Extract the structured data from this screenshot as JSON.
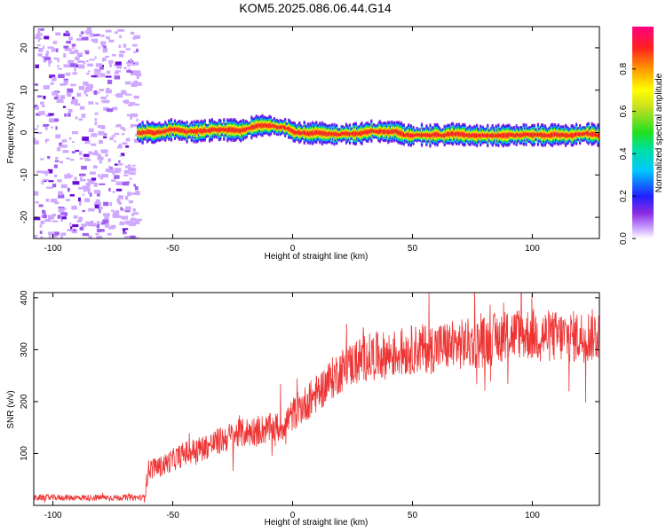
{
  "title": "KOM5.2025.086.06.44.G14",
  "chart_data": [
    {
      "type": "heatmap",
      "xlabel": "Height of straight line (km)",
      "ylabel": "Frequency (Hz)",
      "xlim": [
        -108,
        128
      ],
      "ylim": [
        -25,
        25
      ],
      "x_ticks": [
        "-100",
        "-50",
        "0",
        "50",
        "100"
      ],
      "y_ticks": [
        "20",
        "10",
        "0",
        "-10",
        "-20"
      ],
      "colorbar": {
        "label": "Normalized spectral amplitude",
        "range": [
          0.0,
          1.0
        ],
        "ticks": [
          "0.0",
          "0.2",
          "0.4",
          "0.6",
          "0.8"
        ]
      },
      "signal": {
        "onset_x": -65,
        "center_frequency": 0,
        "note": "Below onset_x only scattered low-amplitude noise; above onset_x a narrow high-amplitude line near 0 Hz"
      }
    },
    {
      "type": "line",
      "xlabel": "Height of straight line (km)",
      "ylabel": "SNR (v/v)",
      "xlim": [
        -108,
        128
      ],
      "ylim": [
        0,
        410
      ],
      "x_ticks": [
        "-100",
        "-50",
        "0",
        "50",
        "100"
      ],
      "y_ticks": [
        "400",
        "300",
        "200",
        "100"
      ],
      "series": [
        {
          "color": "#ee3333",
          "x": [
            -108,
            -80,
            -62,
            -60,
            -55,
            -45,
            -35,
            -25,
            -15,
            -5,
            0,
            10,
            20,
            30,
            40,
            50,
            60,
            70,
            80,
            90,
            100,
            110,
            120,
            128
          ],
          "y": [
            15,
            15,
            15,
            70,
            75,
            100,
            115,
            135,
            145,
            150,
            175,
            215,
            260,
            285,
            290,
            300,
            305,
            310,
            315,
            330,
            330,
            325,
            325,
            330
          ]
        }
      ]
    }
  ],
  "colors": {
    "line": "#ee3333",
    "axis": "#000000"
  }
}
